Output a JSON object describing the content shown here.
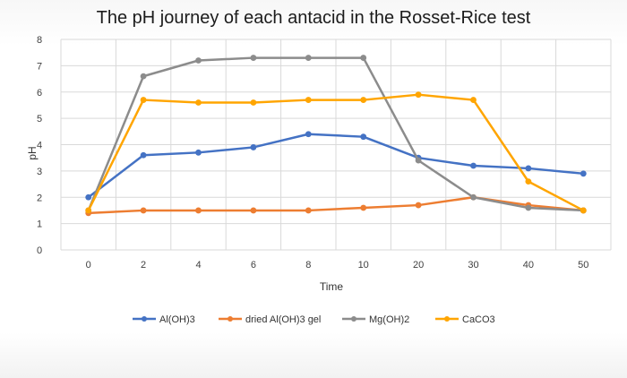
{
  "chart_data": {
    "type": "line",
    "title": "The pH journey of each antacid in the Rosset-Rice test",
    "xlabel": "Time",
    "ylabel": "pH",
    "categories": [
      "0",
      "2",
      "4",
      "6",
      "8",
      "10",
      "20",
      "30",
      "40",
      "50"
    ],
    "yticks": [
      "0",
      "1",
      "2",
      "3",
      "4",
      "5",
      "6",
      "7",
      "8"
    ],
    "ylim": [
      0,
      8
    ],
    "grid": true,
    "legend_position": "bottom",
    "series": [
      {
        "name": "Al(OH)3",
        "color": "#4472c4",
        "values": [
          2.0,
          3.6,
          3.7,
          3.9,
          4.4,
          4.3,
          3.5,
          3.2,
          3.1,
          2.9
        ]
      },
      {
        "name": "dried Al(OH)3 gel",
        "color": "#ed7d31",
        "values": [
          1.4,
          1.5,
          1.5,
          1.5,
          1.5,
          1.6,
          1.7,
          2.0,
          1.7,
          1.5
        ]
      },
      {
        "name": "Mg(OH)2",
        "color": "#8c8c8c",
        "values": [
          1.5,
          6.6,
          7.2,
          7.3,
          7.3,
          7.3,
          3.4,
          2.0,
          1.6,
          1.5
        ]
      },
      {
        "name": "CaCO3",
        "color": "#ffa500",
        "values": [
          1.5,
          5.7,
          5.6,
          5.6,
          5.7,
          5.7,
          5.9,
          5.7,
          2.6,
          1.5
        ]
      }
    ]
  }
}
